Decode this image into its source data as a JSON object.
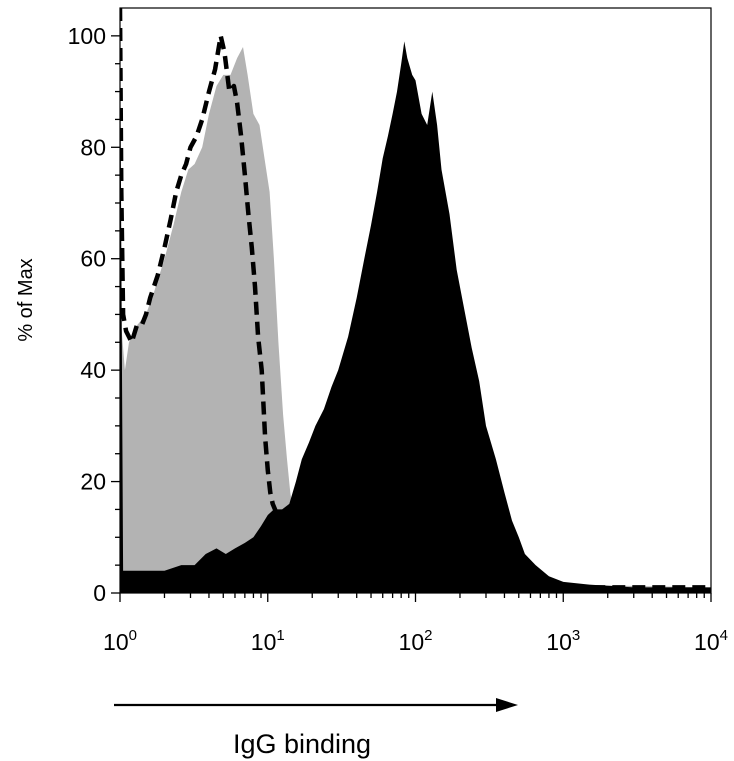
{
  "chart_data": {
    "type": "area",
    "title": "",
    "xlabel": "IgG binding",
    "ylabel": "% of Max",
    "x_scale": "log",
    "xlim": [
      1,
      10000
    ],
    "ylim": [
      0,
      105
    ],
    "x_ticks": [
      {
        "base": "10",
        "exp": "0",
        "value": 1
      },
      {
        "base": "10",
        "exp": "1",
        "value": 10
      },
      {
        "base": "10",
        "exp": "2",
        "value": 100
      },
      {
        "base": "10",
        "exp": "3",
        "value": 1000
      },
      {
        "base": "10",
        "exp": "4",
        "value": 10000
      }
    ],
    "y_ticks": [
      "0",
      "20",
      "40",
      "60",
      "80",
      "100"
    ],
    "grid": false,
    "legend": "none",
    "series": [
      {
        "style": "filled",
        "color": "#b3b3b3",
        "points": [
          [
            1.0,
            104
          ],
          [
            1.02,
            48
          ],
          [
            1.08,
            40
          ],
          [
            1.15,
            45
          ],
          [
            1.3,
            48
          ],
          [
            1.5,
            50
          ],
          [
            1.7,
            54
          ],
          [
            2.0,
            60
          ],
          [
            2.3,
            66
          ],
          [
            2.6,
            72
          ],
          [
            2.9,
            76
          ],
          [
            3.2,
            77
          ],
          [
            3.6,
            80
          ],
          [
            4.0,
            86
          ],
          [
            4.5,
            91
          ],
          [
            5.0,
            93
          ],
          [
            5.6,
            93
          ],
          [
            6.2,
            96
          ],
          [
            6.8,
            98
          ],
          [
            7.3,
            93
          ],
          [
            8.0,
            86
          ],
          [
            8.8,
            84
          ],
          [
            9.5,
            78
          ],
          [
            10.3,
            72
          ],
          [
            11.0,
            60
          ],
          [
            11.8,
            45
          ],
          [
            12.7,
            32
          ],
          [
            13.5,
            24
          ],
          [
            14.2,
            18
          ],
          [
            15.5,
            12
          ],
          [
            17.0,
            8
          ],
          [
            20,
            6
          ],
          [
            25,
            5
          ],
          [
            40,
            4
          ],
          [
            100,
            3
          ],
          [
            1000,
            1.5
          ],
          [
            10000,
            1
          ],
          [
            10000,
            0
          ],
          [
            1.0,
            0
          ]
        ]
      },
      {
        "style": "filled",
        "color": "#000000",
        "points": [
          [
            1.0,
            104
          ],
          [
            1.05,
            4
          ],
          [
            1.5,
            4
          ],
          [
            2.0,
            4
          ],
          [
            2.6,
            5
          ],
          [
            3.2,
            5
          ],
          [
            3.8,
            7
          ],
          [
            4.5,
            8
          ],
          [
            5.2,
            7
          ],
          [
            6.0,
            8
          ],
          [
            7.0,
            9
          ],
          [
            8.0,
            10
          ],
          [
            9.0,
            12
          ],
          [
            10.0,
            14
          ],
          [
            11.0,
            15
          ],
          [
            12.5,
            15
          ],
          [
            14.0,
            16
          ],
          [
            15.5,
            20
          ],
          [
            17.0,
            24
          ],
          [
            19.0,
            27
          ],
          [
            21.0,
            30
          ],
          [
            24.0,
            33
          ],
          [
            27.0,
            37
          ],
          [
            30.0,
            40
          ],
          [
            35.0,
            46
          ],
          [
            40.0,
            53
          ],
          [
            45.0,
            60
          ],
          [
            50.0,
            66
          ],
          [
            55.0,
            72
          ],
          [
            60.0,
            78
          ],
          [
            65.0,
            82
          ],
          [
            70.0,
            86
          ],
          [
            75.0,
            90
          ],
          [
            80.0,
            95
          ],
          [
            84.0,
            99
          ],
          [
            88.0,
            96
          ],
          [
            95.0,
            93
          ],
          [
            100.0,
            92
          ],
          [
            110.0,
            86
          ],
          [
            120.0,
            84
          ],
          [
            130.0,
            90
          ],
          [
            140.0,
            84
          ],
          [
            150.0,
            76
          ],
          [
            170.0,
            68
          ],
          [
            190.0,
            58
          ],
          [
            210.0,
            52
          ],
          [
            240.0,
            44
          ],
          [
            270.0,
            38
          ],
          [
            300.0,
            30
          ],
          [
            350.0,
            24
          ],
          [
            400.0,
            18
          ],
          [
            450.0,
            13
          ],
          [
            500.0,
            10
          ],
          [
            550.0,
            7
          ],
          [
            650.0,
            5
          ],
          [
            800.0,
            3
          ],
          [
            1000.0,
            2
          ],
          [
            1500.0,
            1.5
          ],
          [
            3000.0,
            1
          ],
          [
            10000,
            1
          ],
          [
            10000,
            0
          ],
          [
            1.0,
            0
          ]
        ]
      },
      {
        "style": "dashed",
        "color": "#000000",
        "points": [
          [
            1.0,
            105
          ],
          [
            1.02,
            72
          ],
          [
            1.05,
            50
          ],
          [
            1.1,
            47
          ],
          [
            1.2,
            45
          ],
          [
            1.3,
            48
          ],
          [
            1.4,
            48
          ],
          [
            1.5,
            50
          ],
          [
            1.6,
            53
          ],
          [
            1.8,
            57
          ],
          [
            2.0,
            62
          ],
          [
            2.2,
            67
          ],
          [
            2.4,
            72
          ],
          [
            2.6,
            75
          ],
          [
            2.8,
            77
          ],
          [
            3.0,
            80
          ],
          [
            3.3,
            82
          ],
          [
            3.6,
            85
          ],
          [
            4.0,
            90
          ],
          [
            4.4,
            94
          ],
          [
            4.8,
            100
          ],
          [
            5.1,
            97
          ],
          [
            5.5,
            90
          ],
          [
            5.9,
            91
          ],
          [
            6.2,
            88
          ],
          [
            6.6,
            82
          ],
          [
            7.0,
            75
          ],
          [
            7.4,
            68
          ],
          [
            7.8,
            62
          ],
          [
            8.2,
            55
          ],
          [
            8.6,
            46
          ],
          [
            9.1,
            40
          ],
          [
            9.6,
            28
          ],
          [
            10.0,
            22
          ],
          [
            10.4,
            18
          ],
          [
            10.8,
            16
          ],
          [
            11.2,
            15
          ],
          [
            13.0,
            10
          ],
          [
            15,
            7
          ],
          [
            20,
            5
          ],
          [
            50,
            4
          ],
          [
            200,
            3
          ],
          [
            600,
            2
          ],
          [
            900,
            1.5
          ],
          [
            1500,
            1
          ],
          [
            3000,
            1
          ],
          [
            10000,
            1
          ]
        ]
      }
    ]
  }
}
